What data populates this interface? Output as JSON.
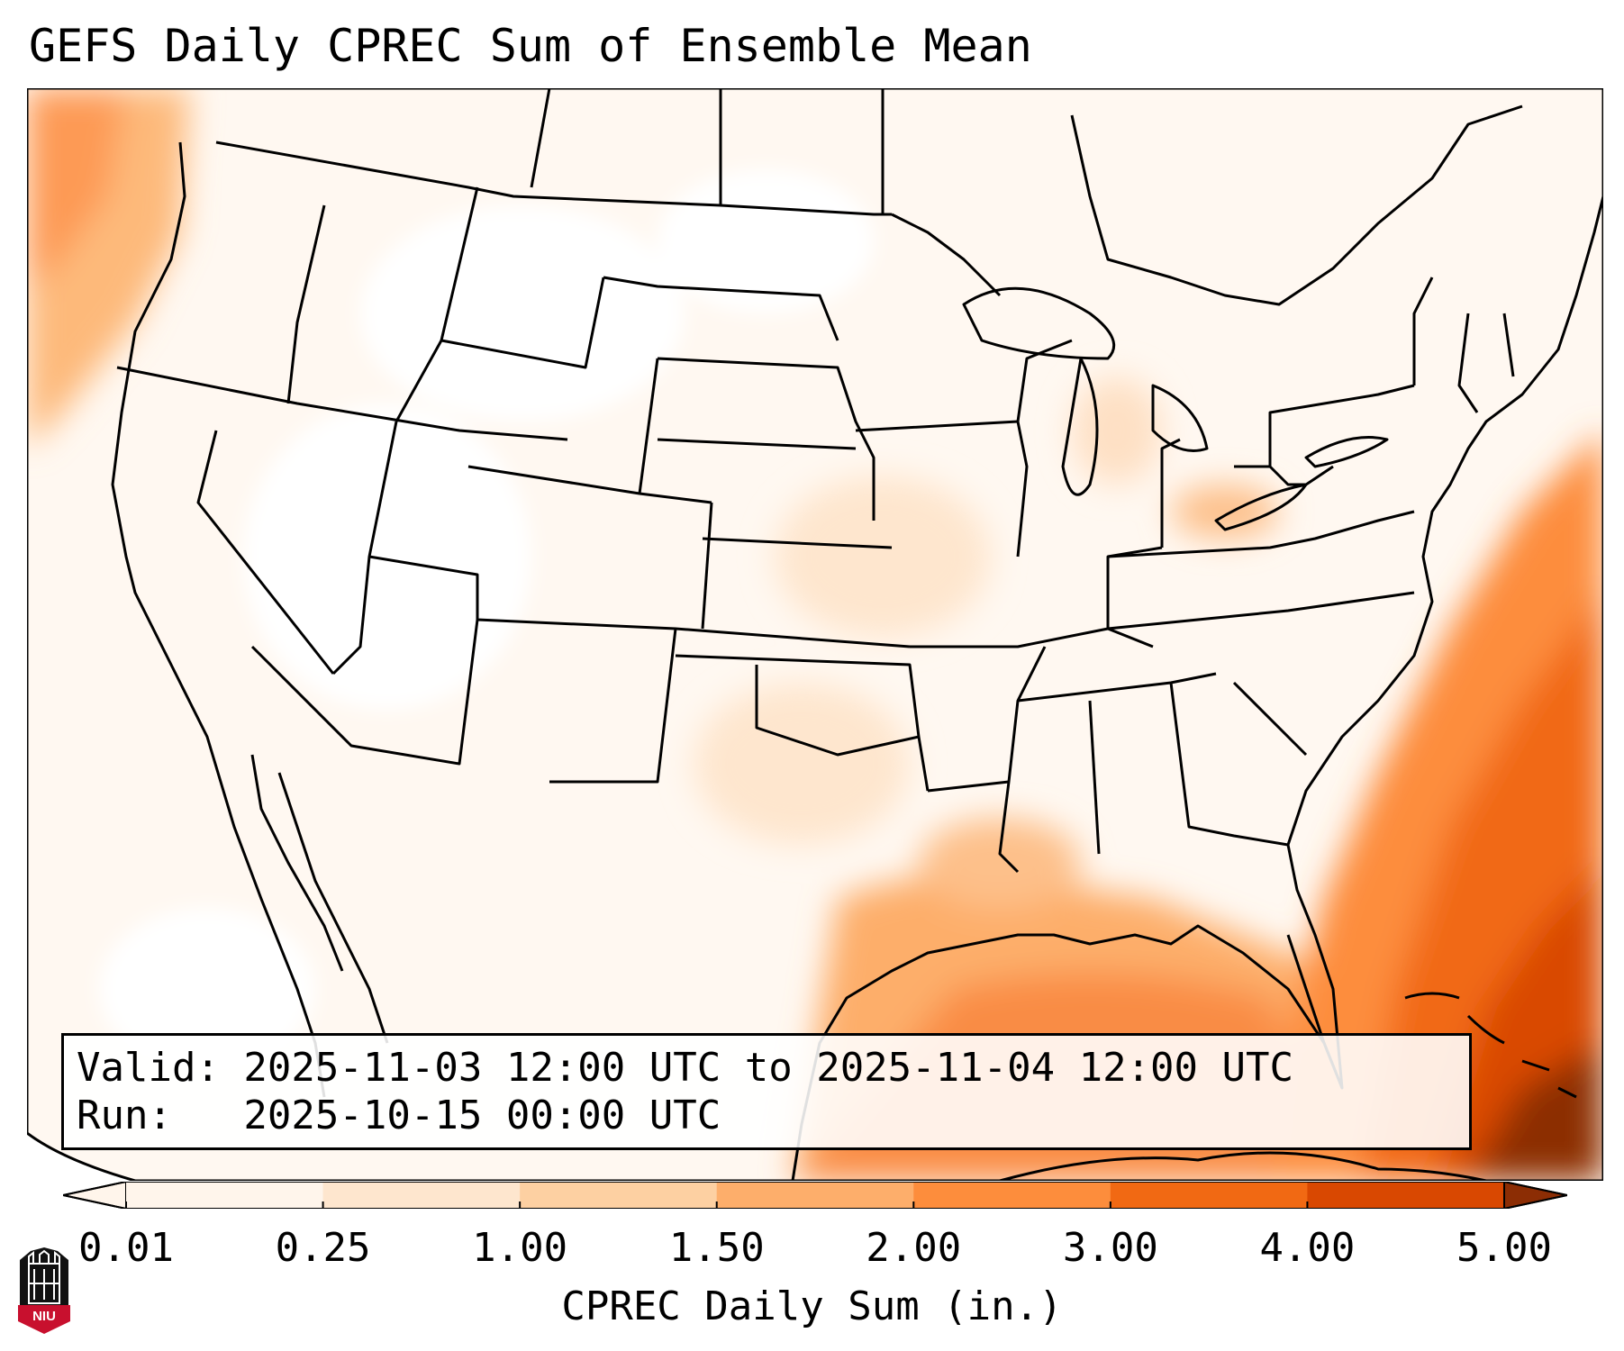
{
  "title": "GEFS Daily CPREC Sum of Ensemble Mean",
  "valid_line": "Valid: 2025-11-03 12:00 UTC to 2025-11-04 12:00 UTC",
  "run_line": "Run:   2025-10-15 00:00 UTC",
  "colorbar": {
    "label": "CPREC Daily Sum (in.)",
    "ticks": [
      "0.01",
      "0.25",
      "1.00",
      "1.50",
      "2.00",
      "3.00",
      "4.00",
      "5.00"
    ],
    "colors": [
      "#fff5eb",
      "#fee6ce",
      "#fdd0a2",
      "#fdae6b",
      "#fd8d3c",
      "#f16913",
      "#d94801",
      "#8c2d04"
    ],
    "extend": "both"
  },
  "logo": {
    "text": "NIU",
    "colors": {
      "shield": "#111111",
      "banner": "#c8102e"
    }
  },
  "colors": {
    "ocean_heavy": "#d94801",
    "ocean_moderate": "#f16913",
    "land_light": "#fff5eb"
  }
}
